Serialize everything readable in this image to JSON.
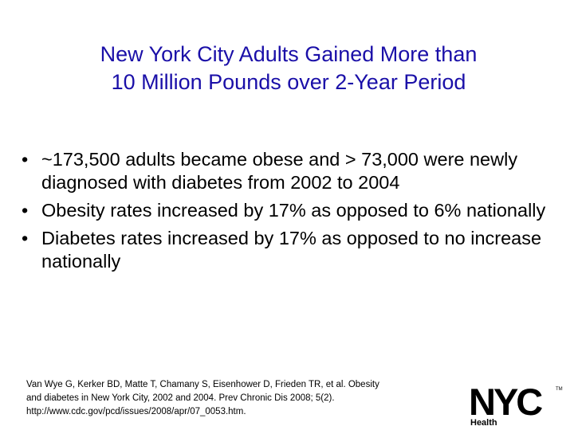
{
  "title": {
    "line1": "New York City Adults Gained More than",
    "line2": "10 Million Pounds over 2-Year Period"
  },
  "bullet_symbol": "•",
  "bullets": [
    "~173,500 adults became obese and > 73,000 were newly diagnosed with diabetes from 2002 to 2004",
    "Obesity rates increased by 17% as opposed to 6% nationally",
    "Diabetes rates increased by 17% as opposed to no increase nationally"
  ],
  "citation": {
    "line1": "Van Wye G, Kerker BD, Matte T, Chamany S, Eisenhower D, Frieden TR, et al. Obesity",
    "line2": "and diabetes in New York City, 2002 and 2004. Prev Chronic Dis 2008; 5(2).",
    "line3": "http://www.cdc.gov/pcd/issues/2008/apr/07_0053.htm."
  },
  "logo": {
    "mark": "NYC",
    "sub": "Health",
    "tm": "TM"
  },
  "colors": {
    "title": "#1a0fa8",
    "text": "#000000",
    "background": "#ffffff"
  }
}
